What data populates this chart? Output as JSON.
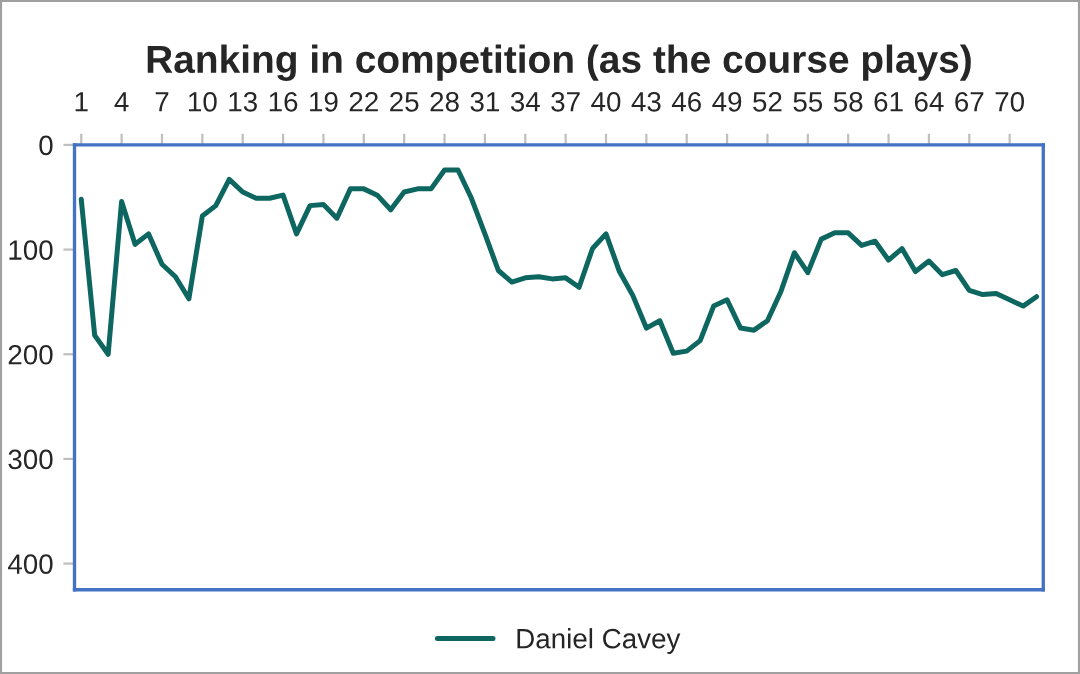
{
  "chart_data": {
    "type": "line",
    "title": "Ranking in competition (as the course plays)",
    "x": [
      1,
      2,
      3,
      4,
      5,
      6,
      7,
      8,
      9,
      10,
      11,
      12,
      13,
      14,
      15,
      16,
      17,
      18,
      19,
      20,
      21,
      22,
      23,
      24,
      25,
      26,
      27,
      28,
      29,
      30,
      31,
      32,
      33,
      34,
      35,
      36,
      37,
      38,
      39,
      40,
      41,
      42,
      43,
      44,
      45,
      46,
      47,
      48,
      49,
      50,
      51,
      52,
      53,
      54,
      55,
      56,
      57,
      58,
      59,
      60,
      61,
      62,
      63,
      64,
      65,
      66,
      67,
      68,
      69,
      70,
      71,
      72
    ],
    "series": [
      {
        "name": "Daniel Cavey",
        "color": "#0e6660",
        "values": [
          52,
          182,
          200,
          54,
          95,
          85,
          114,
          126,
          147,
          68,
          58,
          33,
          45,
          51,
          51,
          48,
          85,
          58,
          57,
          70,
          42,
          42,
          48,
          62,
          45,
          42,
          42,
          24,
          24,
          51,
          85,
          120,
          131,
          127,
          126,
          128,
          127,
          136,
          99,
          85,
          121,
          144,
          175,
          168,
          199,
          197,
          187,
          154,
          148,
          175,
          177,
          168,
          140,
          103,
          122,
          90,
          84,
          84,
          96,
          92,
          110,
          99,
          121,
          111,
          124,
          120,
          139,
          143,
          142,
          148,
          154,
          145
        ]
      }
    ],
    "xlim": [
      0.5,
      72.5
    ],
    "xticks": [
      1,
      4,
      7,
      10,
      13,
      16,
      19,
      22,
      25,
      28,
      31,
      34,
      37,
      40,
      43,
      46,
      49,
      52,
      55,
      58,
      61,
      64,
      67,
      70
    ],
    "ylim": [
      425,
      0
    ],
    "yticks": [
      0,
      100,
      200,
      300,
      400
    ],
    "legend": "bottom",
    "grid": false,
    "line_style": "solid",
    "marker": "none"
  }
}
